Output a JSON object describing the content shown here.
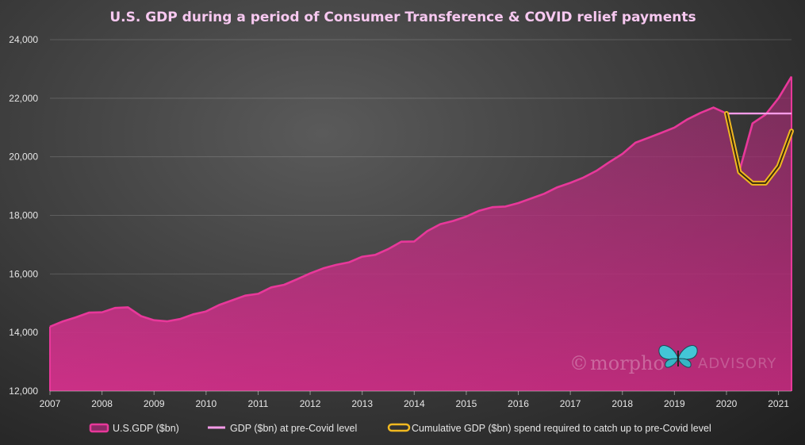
{
  "chart_data": {
    "type": "area",
    "title": "U.S. GDP during a period of Consumer Transference & COVID relief payments",
    "xlabel": "",
    "ylabel": "",
    "xlim": [
      2007.0,
      2021.25
    ],
    "ylim": [
      12000,
      24000
    ],
    "x_ticks": [
      "2007",
      "2008",
      "2009",
      "2010",
      "2011",
      "2012",
      "2013",
      "2014",
      "2015",
      "2016",
      "2017",
      "2018",
      "2019",
      "2020",
      "2021"
    ],
    "y_ticks": [
      "12,000",
      "14,000",
      "16,000",
      "18,000",
      "20,000",
      "22,000",
      "24,000"
    ],
    "y_tick_values": [
      12000,
      14000,
      16000,
      18000,
      20000,
      22000,
      24000
    ],
    "grid": "horizontal",
    "legend_position": "bottom",
    "series": [
      {
        "name": "U.S.GDP ($bn)",
        "kind": "area",
        "color": "#e8389a",
        "x": [
          2007.0,
          2007.25,
          2007.5,
          2007.75,
          2008.0,
          2008.25,
          2008.5,
          2008.75,
          2009.0,
          2009.25,
          2009.5,
          2009.75,
          2010.0,
          2010.25,
          2010.5,
          2010.75,
          2011.0,
          2011.25,
          2011.5,
          2011.75,
          2012.0,
          2012.25,
          2012.5,
          2012.75,
          2013.0,
          2013.25,
          2013.5,
          2013.75,
          2014.0,
          2014.25,
          2014.5,
          2014.75,
          2015.0,
          2015.25,
          2015.5,
          2015.75,
          2016.0,
          2016.25,
          2016.5,
          2016.75,
          2017.0,
          2017.25,
          2017.5,
          2017.75,
          2018.0,
          2018.25,
          2018.5,
          2018.75,
          2019.0,
          2019.25,
          2019.5,
          2019.75,
          2020.0,
          2020.25,
          2020.5,
          2020.75,
          2021.0,
          2021.25
        ],
        "values": [
          14200,
          14380,
          14520,
          14680,
          14690,
          14840,
          14860,
          14560,
          14420,
          14380,
          14460,
          14620,
          14720,
          14940,
          15100,
          15260,
          15320,
          15540,
          15630,
          15820,
          16020,
          16190,
          16310,
          16400,
          16590,
          16650,
          16850,
          17100,
          17110,
          17460,
          17700,
          17810,
          17960,
          18160,
          18280,
          18300,
          18420,
          18580,
          18740,
          18960,
          19110,
          19290,
          19520,
          19820,
          20100,
          20480,
          20650,
          20820,
          21000,
          21280,
          21500,
          21680,
          21480,
          19520,
          21140,
          21440,
          22000,
          22740
        ]
      },
      {
        "name": "GDP ($bn) at pre-Covid level",
        "kind": "line",
        "color": "#f59be8",
        "x": [
          2020.0,
          2021.25
        ],
        "values": [
          21480,
          21480
        ]
      },
      {
        "name": "Cumulative GDP ($bn) spend required to catch up to pre-Covid level",
        "kind": "line",
        "color": "#f0b820",
        "x": [
          2020.0,
          2020.25,
          2020.5,
          2020.75,
          2021.0,
          2021.25
        ],
        "values": [
          21480,
          19480,
          19100,
          19100,
          19680,
          20880
        ]
      }
    ]
  },
  "watermark": {
    "copyright_symbol": "©",
    "brand_left": "morpho",
    "brand_right": "ADVISORY",
    "logo_icon": "butterfly-icon"
  }
}
